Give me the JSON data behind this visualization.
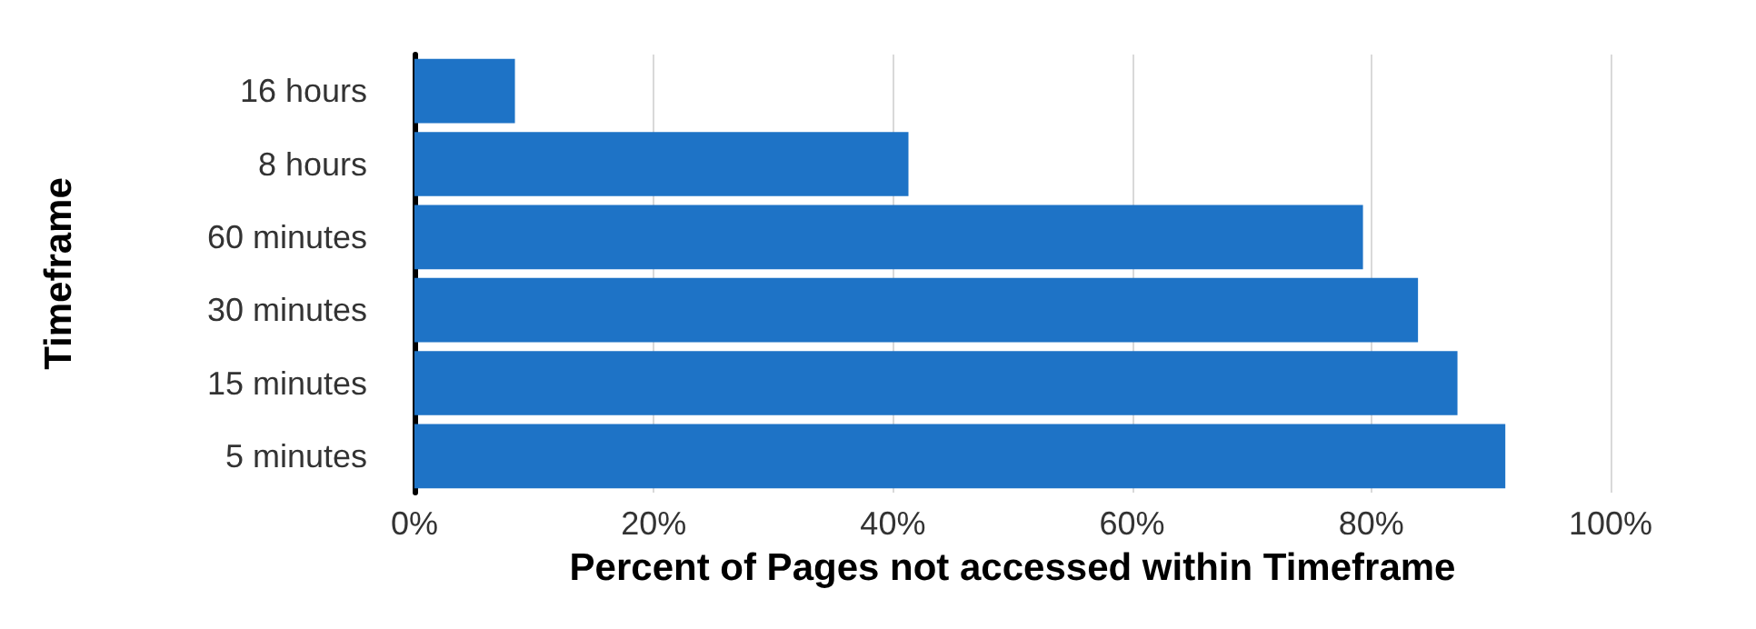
{
  "chart_data": {
    "type": "bar",
    "orientation": "horizontal",
    "xlabel": "Percent of Pages not accessed within Timeframe",
    "ylabel": "Timeframe",
    "categories": [
      "16 hours",
      "8 hours",
      "60 minutes",
      "30 minutes",
      "15 minutes",
      "5 minutes"
    ],
    "values": [
      8.4,
      41.3,
      79.3,
      83.9,
      87.2,
      91.2
    ],
    "color": "#1e73c6",
    "xlim": [
      0,
      100
    ],
    "xticks": [
      {
        "value": 0,
        "label": "0%"
      },
      {
        "value": 20,
        "label": "20%"
      },
      {
        "value": 40,
        "label": "40%"
      },
      {
        "value": 60,
        "label": "60%"
      },
      {
        "value": 80,
        "label": "80%"
      },
      {
        "value": 100,
        "label": "100%"
      }
    ],
    "grid": "x"
  }
}
